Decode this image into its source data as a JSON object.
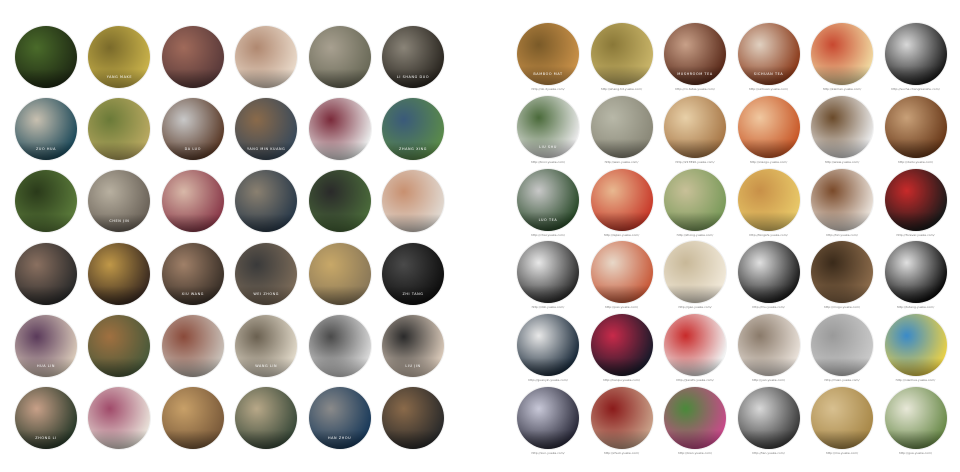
{
  "left_grid": {
    "rows": [
      [
        {
          "label": "",
          "icon": "artisan-portrait-photo",
          "colors": [
            "#1f2a14",
            "#4a6b2a"
          ]
        },
        {
          "label": "YANG MAKE",
          "icon": "artisan-portrait-photo",
          "colors": [
            "#c9b24a",
            "#7a6a2a"
          ]
        },
        {
          "label": "",
          "icon": "artisan-portrait-photo",
          "colors": [
            "#5a3a3a",
            "#a06a5a"
          ]
        },
        {
          "label": "",
          "icon": "artisan-portrait-photo",
          "colors": [
            "#e8d8c8",
            "#b08870"
          ]
        },
        {
          "label": "",
          "icon": "artisan-portrait-photo",
          "colors": [
            "#6a6a58",
            "#a8a090"
          ]
        },
        {
          "label": "LI SHANG DUO",
          "icon": "artisan-portrait-photo",
          "colors": [
            "#2a2620",
            "#8a8478"
          ]
        }
      ],
      [
        {
          "label": "ZUO HUA",
          "icon": "artisan-portrait-photo",
          "colors": [
            "#1e4a5a",
            "#c8c0b0"
          ]
        },
        {
          "label": "",
          "icon": "artisan-portrait-photo",
          "colors": [
            "#b8a860",
            "#6a7a38"
          ]
        },
        {
          "label": "DA LUO",
          "icon": "artisan-portrait-photo",
          "colors": [
            "#5a3a28",
            "#c8c8c8"
          ]
        },
        {
          "label": "YANG MIN KUANG",
          "icon": "artisan-portrait-photo",
          "colors": [
            "#3a4a5a",
            "#8a6a4a"
          ]
        },
        {
          "label": "",
          "icon": "artisan-portrait-photo",
          "colors": [
            "#e8e8e8",
            "#7a2a3a"
          ]
        },
        {
          "label": "ZHANG XING",
          "icon": "artisan-portrait-photo",
          "colors": [
            "#5a8a4a",
            "#3a5a7a"
          ]
        }
      ],
      [
        {
          "label": "",
          "icon": "artisan-portrait-photo",
          "colors": [
            "#5a7a3a",
            "#2a3a1a"
          ]
        },
        {
          "label": "CHEN JIN",
          "icon": "artisan-portrait-photo",
          "colors": [
            "#6a6258",
            "#b8b0a0"
          ]
        },
        {
          "label": "",
          "icon": "artisan-portrait-photo",
          "colors": [
            "#8a3a4a",
            "#d8b8a8"
          ]
        },
        {
          "label": "",
          "icon": "artisan-portrait-photo",
          "colors": [
            "#2a3a4a",
            "#8a8070"
          ]
        },
        {
          "label": "",
          "icon": "artisan-portrait-photo",
          "colors": [
            "#4a6a3a",
            "#2a2a2a"
          ]
        },
        {
          "label": "",
          "icon": "artisan-portrait-photo",
          "colors": [
            "#e0d8d0",
            "#c89070"
          ]
        }
      ],
      [
        {
          "label": "",
          "icon": "artisan-portrait-photo",
          "colors": [
            "#2a2a2a",
            "#8a7060"
          ]
        },
        {
          "label": "",
          "icon": "artisan-portrait-photo",
          "colors": [
            "#3a2a20",
            "#c09848"
          ]
        },
        {
          "label": "XIU WANG",
          "icon": "artisan-portrait-photo",
          "colors": [
            "#3a3028",
            "#a08068"
          ]
        },
        {
          "label": "WEI ZHONG",
          "icon": "artisan-portrait-photo",
          "colors": [
            "#7a6a58",
            "#3a3a3a"
          ]
        },
        {
          "label": "",
          "icon": "artisan-portrait-photo",
          "colors": [
            "#8a7858",
            "#c8a868"
          ]
        },
        {
          "label": "ZHI TANG",
          "icon": "artisan-portrait-photo",
          "colors": [
            "#0e0e0e",
            "#4a4a4a"
          ]
        }
      ],
      [
        {
          "label": "HUA LIN",
          "icon": "artisan-portrait-photo",
          "colors": [
            "#d8c8b8",
            "#5a3a5a"
          ]
        },
        {
          "label": "",
          "icon": "artisan-portrait-photo",
          "colors": [
            "#4a5a3a",
            "#a07040"
          ]
        },
        {
          "label": "",
          "icon": "artisan-portrait-photo",
          "colors": [
            "#c8c0b8",
            "#8a4a3a"
          ]
        },
        {
          "label": "WANG LIN",
          "icon": "artisan-portrait-photo",
          "colors": [
            "#e0d8c8",
            "#6a6050"
          ]
        },
        {
          "label": "",
          "icon": "artisan-portrait-photo",
          "colors": [
            "#d8d8d8",
            "#4a4a4a"
          ]
        },
        {
          "label": "LIU JIN",
          "icon": "artisan-portrait-photo",
          "colors": [
            "#d8c8b8",
            "#2a2a2a"
          ]
        }
      ],
      [
        {
          "label": "ZHONG LI",
          "icon": "artisan-portrait-photo",
          "colors": [
            "#2a3a2a",
            "#c8a088"
          ]
        },
        {
          "label": "",
          "icon": "artisan-portrait-photo",
          "colors": [
            "#e8e0d8",
            "#a04a6a"
          ]
        },
        {
          "label": "",
          "icon": "artisan-portrait-photo",
          "colors": [
            "#7a5a3a",
            "#c8a068"
          ]
        },
        {
          "label": "",
          "icon": "artisan-portrait-photo",
          "colors": [
            "#3a4a3a",
            "#b8a888"
          ]
        },
        {
          "label": "HAN ZHOU",
          "icon": "artisan-portrait-photo",
          "colors": [
            "#1a3a5a",
            "#8a8a8a"
          ]
        },
        {
          "label": "",
          "icon": "artisan-portrait-photo",
          "colors": [
            "#2a2a2a",
            "#8a6a4a"
          ]
        }
      ]
    ]
  },
  "right_grid": {
    "rows": [
      [
        {
          "label": "BAMBOO MAT",
          "source": "http://ok.2yueke.com/",
          "icon": "bamboo-mat-photo",
          "colors": [
            "#c89048",
            "#7a5a28"
          ]
        },
        {
          "label": "",
          "source": "http://shang.hd.yueke.com/",
          "icon": "grass-weave-photo",
          "colors": [
            "#c8b468",
            "#8a7838"
          ]
        },
        {
          "label": "MUSHROOM TEA",
          "source": "http://cn.tatas.yueke.com/",
          "icon": "brown-cake-photo",
          "colors": [
            "#5a2a1a",
            "#c8a088"
          ]
        },
        {
          "label": "SICHUAN TEA",
          "source": "http://sichuan.yueke.com/",
          "icon": "clay-teapot-photo",
          "colors": [
            "#8a3a1a",
            "#e0d0c0"
          ]
        },
        {
          "label": "",
          "source": "http://kaimen.yueke.com/",
          "icon": "noodles-photo",
          "colors": [
            "#f0d8a0",
            "#c84830"
          ]
        },
        {
          "label": "",
          "source": "http://sucha.changnianshu.com/",
          "icon": "black-plant-photo",
          "colors": [
            "#1a1a1a",
            "#d8d8d8"
          ]
        }
      ],
      [
        {
          "label": "LIU SHU",
          "source": "http://bnxi.yueke.com/",
          "icon": "bonsai-cart-photo",
          "colors": [
            "#e8e8e8",
            "#4a6a3a"
          ]
        },
        {
          "label": "",
          "source": "http://wen.yueke.com/",
          "icon": "stones-photo",
          "colors": [
            "#8a8878",
            "#b8b8a8"
          ]
        },
        {
          "label": "",
          "source": "http://217890.yueke.com/",
          "icon": "walnuts-photo",
          "colors": [
            "#a87848",
            "#e8d0a8"
          ]
        },
        {
          "label": "",
          "source": "http://xiaogu.yueke.com/",
          "icon": "honey-jar-photo",
          "colors": [
            "#c85828",
            "#f0c8a0"
          ]
        },
        {
          "label": "",
          "source": "http://www.yueke.com/",
          "icon": "chopsticks-photo",
          "colors": [
            "#e8e8e8",
            "#6a4a2a"
          ]
        },
        {
          "label": "",
          "source": "http://dadu.yueke.com/",
          "icon": "chestnuts-photo",
          "colors": [
            "#6a3a1a",
            "#c8a078"
          ]
        }
      ],
      [
        {
          "label": "LUO TEA",
          "source": "http://chai.yueke.com/",
          "icon": "tea-leaves-photo",
          "colors": [
            "#2a4a2a",
            "#c8c8c8"
          ]
        },
        {
          "label": "",
          "source": "http://lajiao.yueke.com/",
          "icon": "red-pepper-photo",
          "colors": [
            "#c83a2a",
            "#e8b890"
          ]
        },
        {
          "label": "",
          "source": "http://zhong.yueke.com/",
          "icon": "zongzi-photo",
          "colors": [
            "#7a9a5a",
            "#c8c098"
          ]
        },
        {
          "label": "",
          "source": "http://bingshi.yueke.com/",
          "icon": "pastry-photo",
          "colors": [
            "#e8c868",
            "#c89048"
          ]
        },
        {
          "label": "",
          "source": "http://lizi.yueke.com/",
          "icon": "nuts-bowl-photo",
          "colors": [
            "#e8e0d8",
            "#7a4a2a"
          ]
        },
        {
          "label": "",
          "source": "http://forever.yueke.com/",
          "icon": "love-box-photo",
          "colors": [
            "#1a1a1a",
            "#c82a2a"
          ]
        }
      ],
      [
        {
          "label": "",
          "source": "http://dizi.yueke.com/",
          "icon": "flute-photo",
          "colors": [
            "#2a2a2a",
            "#e8e8e8"
          ]
        },
        {
          "label": "",
          "source": "http://pao.yueke.com/",
          "icon": "kimchi-photo",
          "colors": [
            "#c85a3a",
            "#e8d8c8"
          ]
        },
        {
          "label": "",
          "source": "http://gao.yueke.com/",
          "icon": "tofu-cake-photo",
          "colors": [
            "#f0e8d8",
            "#c8b898"
          ]
        },
        {
          "label": "",
          "source": "http://mu.yueke.com/",
          "icon": "black-fungus-photo",
          "colors": [
            "#1a1a1a",
            "#e0e0e0"
          ]
        },
        {
          "label": "",
          "source": "http://mogu.yueke.com/",
          "icon": "mushroom-photo",
          "colors": [
            "#8a6a4a",
            "#3a2a1a"
          ]
        },
        {
          "label": "",
          "source": "http://tuteng.yueke.com/",
          "icon": "dragon-emblem-photo",
          "colors": [
            "#0a0a0a",
            "#e0e0e0"
          ]
        }
      ],
      [
        {
          "label": "",
          "source": "http://guanyin.yueke.com/",
          "icon": "white-statue-photo",
          "colors": [
            "#1a2a3a",
            "#e8e8e8"
          ]
        },
        {
          "label": "",
          "source": "http://lianpu.yueke.com/",
          "icon": "opera-mask-photo",
          "colors": [
            "#1a1a2a",
            "#c82a4a"
          ]
        },
        {
          "label": "",
          "source": "http://jianzhi.yueke.com/",
          "icon": "paper-cut-photo",
          "colors": [
            "#f0f0f0",
            "#c82a2a"
          ]
        },
        {
          "label": "",
          "source": "http://yan.yueke.com/",
          "icon": "salt-bowls-photo",
          "colors": [
            "#e8e0d8",
            "#8a7a6a"
          ]
        },
        {
          "label": "",
          "source": "http://mian.yueke.com/",
          "icon": "flour-photo",
          "colors": [
            "#c8c8c8",
            "#9a9a9a"
          ]
        },
        {
          "label": "",
          "source": "http://nianhua.yueke.com/",
          "icon": "folk-painting-photo",
          "colors": [
            "#e8d048",
            "#3a8ac8"
          ]
        }
      ],
      [
        {
          "label": "",
          "source": "http://xun.yueke.com/",
          "icon": "ocarina-photo",
          "colors": [
            "#2a2a3a",
            "#c8c8d8"
          ]
        },
        {
          "label": "",
          "source": "http://zhuzi.yueke.com/",
          "icon": "bead-bracelet-photo",
          "colors": [
            "#c8a088",
            "#8a1a1a"
          ]
        },
        {
          "label": "",
          "source": "http://bian.yueke.com/",
          "icon": "woven-basket-photo",
          "colors": [
            "#c84a8a",
            "#4a8a3a"
          ]
        },
        {
          "label": "",
          "source": "http://tan.yueke.com/",
          "icon": "charcoal-box-photo",
          "colors": [
            "#3a3a3a",
            "#d8d8d8"
          ]
        },
        {
          "label": "",
          "source": "http://ma.yueke.com/",
          "icon": "straw-rope-photo",
          "colors": [
            "#a88848",
            "#d8c090"
          ]
        },
        {
          "label": "",
          "source": "http://gua.yueke.com/",
          "icon": "gourd-slices-photo",
          "colors": [
            "#6a8a4a",
            "#e8e8d8"
          ]
        }
      ]
    ]
  }
}
